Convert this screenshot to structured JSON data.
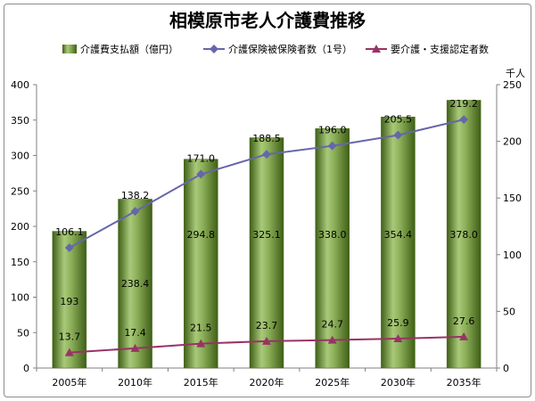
{
  "chart_data": {
    "type": "bar",
    "title": "相模原市老人介護費推移",
    "categories": [
      "2005年",
      "2010年",
      "2015年",
      "2020年",
      "2025年",
      "2030年",
      "2035年"
    ],
    "series": [
      {
        "name": "介護費支払額（億円）",
        "type": "bar",
        "axis": "left",
        "color": "#6b8e23",
        "values": [
          193,
          238.4,
          294.8,
          325.1,
          338.0,
          354.4,
          378.0
        ],
        "labels": [
          "193",
          "238.4",
          "294.8",
          "325.1",
          "338.0",
          "354.4",
          "378.0"
        ]
      },
      {
        "name": "介護保険被保険者数（1号）",
        "type": "line",
        "axis": "right",
        "color": "#6666aa",
        "values": [
          106.1,
          138.2,
          171.0,
          188.5,
          196.0,
          205.5,
          219.2
        ],
        "labels": [
          "106.1",
          "138.2",
          "171.0",
          "188.5",
          "196.0",
          "205.5",
          "219.2"
        ]
      },
      {
        "name": "要介護・支援認定者数",
        "type": "line",
        "axis": "right",
        "color": "#993366",
        "values": [
          13.7,
          17.4,
          21.5,
          23.7,
          24.7,
          25.9,
          27.6
        ],
        "labels": [
          "13.7",
          "17.4",
          "21.5",
          "23.7",
          "24.7",
          "25.9",
          "27.6"
        ]
      }
    ],
    "y_left": {
      "min": 0,
      "max": 400,
      "step": 50,
      "ticks": [
        "0",
        "50",
        "100",
        "150",
        "200",
        "250",
        "300",
        "350",
        "400"
      ]
    },
    "y_right": {
      "min": 0,
      "max": 250,
      "step": 50,
      "ticks": [
        "0",
        "50",
        "100",
        "150",
        "200",
        "250"
      ],
      "unit": "千人"
    },
    "grid": false,
    "legend": "top"
  }
}
